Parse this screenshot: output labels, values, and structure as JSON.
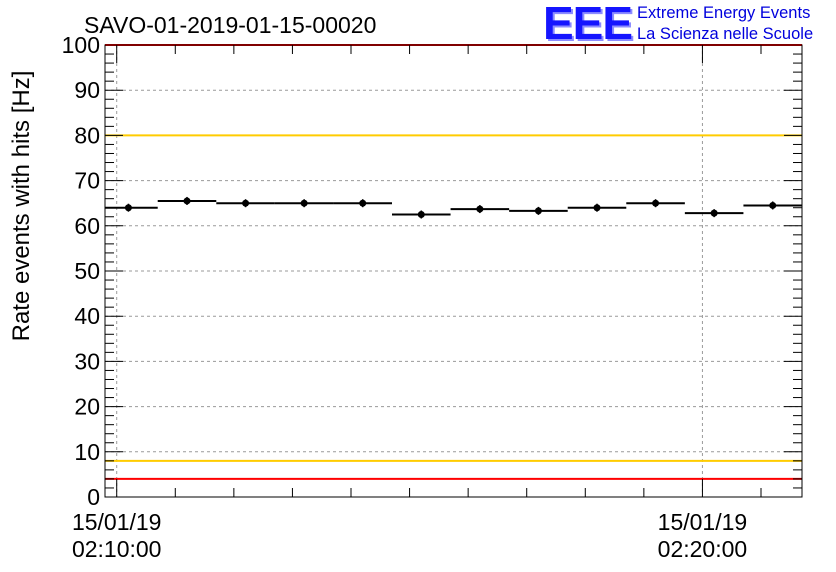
{
  "chart_data": {
    "type": "scatter",
    "title": "SAVO-01-2019-01-15-00020",
    "ylabel": "Rate events with hits [Hz]",
    "xlabel": "",
    "ylim": [
      0,
      100
    ],
    "xlim_minutes": [
      -0.2,
      11.7
    ],
    "yticks": [
      0,
      10,
      20,
      30,
      40,
      50,
      60,
      70,
      80,
      90,
      100
    ],
    "xticks": [
      {
        "minute": 0,
        "date": "15/01/19",
        "time": "02:10:00"
      },
      {
        "minute": 10,
        "date": "15/01/19",
        "time": "02:20:00"
      }
    ],
    "grid": true,
    "bin_width_minutes": 1,
    "series": [
      {
        "name": "rate",
        "x": [
          0.2,
          1.2,
          2.2,
          3.2,
          4.2,
          5.2,
          6.2,
          7.2,
          8.2,
          9.2,
          10.2,
          11.2
        ],
        "values": [
          64.0,
          65.5,
          65.0,
          65.0,
          65.0,
          62.5,
          63.7,
          63.3,
          64.0,
          65.0,
          62.8,
          64.5
        ]
      }
    ],
    "reference_lines": [
      {
        "name": "upper-red-limit",
        "y": 100,
        "color": "#ff0000"
      },
      {
        "name": "upper-yellow-limit",
        "y": 80,
        "color": "#ffcc00"
      },
      {
        "name": "lower-yellow-limit",
        "y": 8,
        "color": "#ffcc00"
      },
      {
        "name": "lower-red-limit",
        "y": 4,
        "color": "#ff0000"
      }
    ]
  },
  "logo": {
    "mark": "EEE",
    "line1": "Extreme Energy Events",
    "line2": "La Scienza nelle Scuole"
  }
}
